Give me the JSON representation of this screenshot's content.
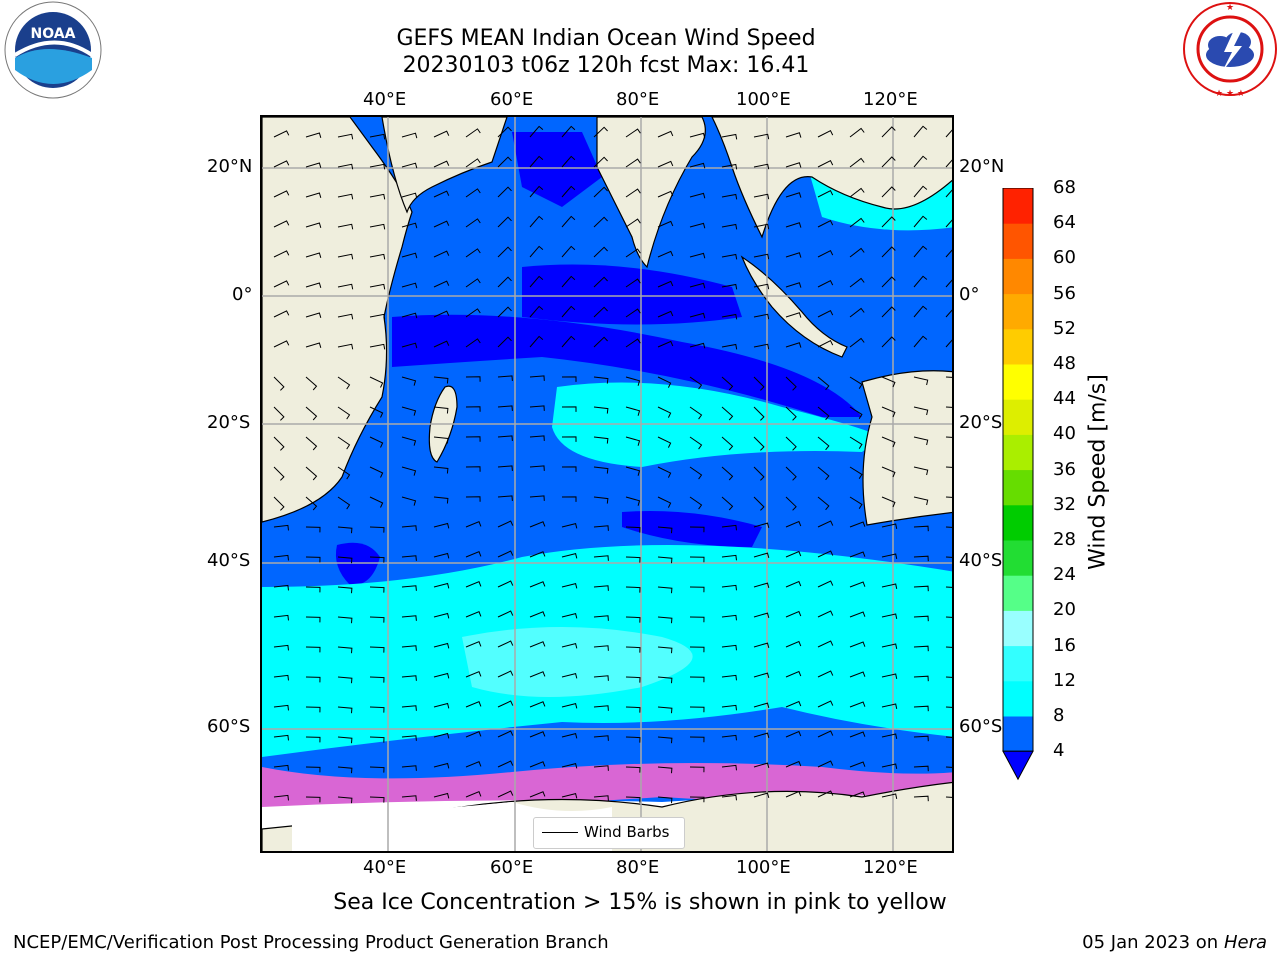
{
  "title_line1": "GEFS MEAN Indian Ocean Wind Speed",
  "title_line2": "20230103 t06z 120h fcst   Max: 16.41",
  "lon_ticks": [
    "40°E",
    "60°E",
    "80°E",
    "100°E",
    "120°E"
  ],
  "lat_ticks": [
    "20°N",
    "0°",
    "20°S",
    "40°S",
    "60°S"
  ],
  "colorbar": {
    "label": "Wind Speed [m/s]",
    "ticks": [
      "4",
      "8",
      "12",
      "16",
      "20",
      "24",
      "28",
      "32",
      "36",
      "40",
      "44",
      "48",
      "52",
      "56",
      "60",
      "64",
      "68"
    ],
    "colors": [
      "#0066ff",
      "#00ffff",
      "#33ffff",
      "#99ffff",
      "#55ff88",
      "#22dd33",
      "#00cc00",
      "#66dd00",
      "#aaee00",
      "#ddee00",
      "#ffff00",
      "#ffcc00",
      "#ffaa00",
      "#ff8800",
      "#ff5500",
      "#ff2200"
    ],
    "extend_color": "#0000ff"
  },
  "legend_label": "Wind Barbs",
  "note": "Sea Ice Concentration > 15% is shown in pink to yellow",
  "footer_left": "NCEP/EMC/Verification Post Processing Product Generation Branch",
  "footer_date": "05 Jan 2023 on",
  "footer_host": "Hera",
  "noaa_logo_text": "NOAA",
  "colors": {
    "land": "#efeedd",
    "deep_blue": "#0000ff",
    "blue": "#0066ff",
    "cyan": "#00ffff",
    "light_cyan": "#66ffff",
    "ice_pink": "#ff66cc",
    "ice_white": "#ffffff"
  }
}
